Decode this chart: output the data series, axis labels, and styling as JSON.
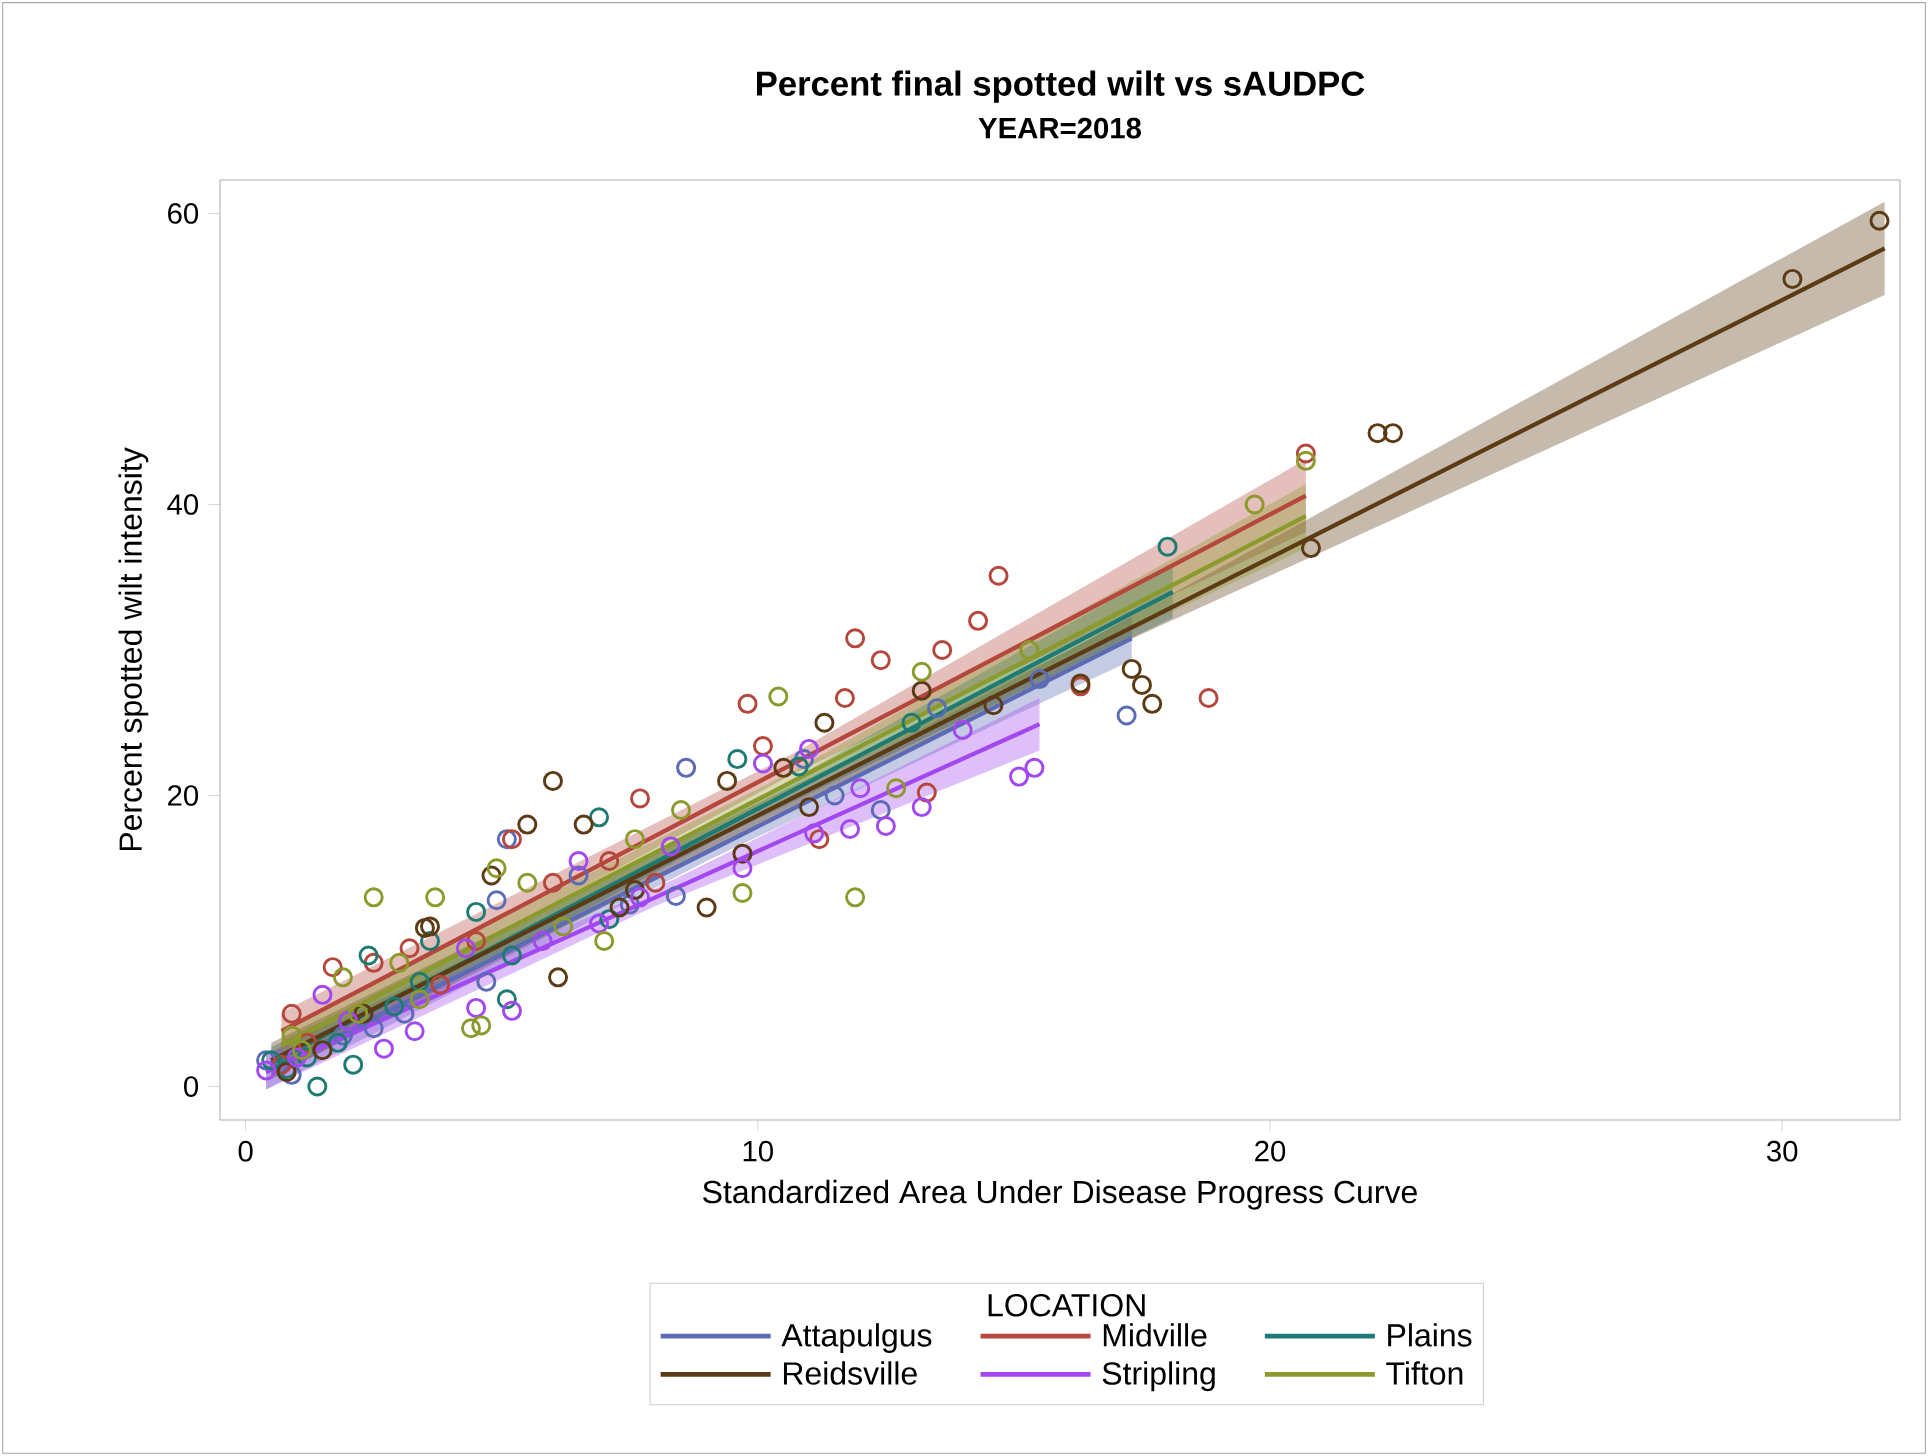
{
  "chart_data": {
    "type": "scatter",
    "title": "Percent final spotted wilt vs sAUDPC",
    "subtitle": "YEAR=2018",
    "xlabel": "Standardized Area Under Disease Progress Curve",
    "ylabel": "Percent spotted wilt intensity",
    "legend_title": "LOCATION",
    "xlim": [
      -0.5,
      32.3
    ],
    "ylim": [
      -2.3,
      62.3
    ],
    "xticks": [
      0,
      10,
      20,
      30
    ],
    "yticks": [
      0,
      20,
      40,
      60
    ],
    "grid": false,
    "legend": "bottom",
    "series": [
      {
        "type": "line",
        "marker": "none",
        "name": "Attapulgus",
        "color": "#5b6bb5",
        "x": [
          0.4,
          9,
          17.3
        ],
        "values": [
          1.0,
          16.1,
          30.8
        ],
        "lower": [
          -0.2,
          15.5,
          29.3
        ],
        "upper": [
          2.2,
          16.7,
          32.3
        ]
      },
      {
        "type": "line",
        "marker": "none",
        "name": "Midville",
        "color": "#b5473c",
        "x": [
          0.7,
          10.7,
          20.7
        ],
        "values": [
          3.8,
          22.2,
          40.6
        ],
        "lower": [
          2.5,
          21.5,
          38.1
        ],
        "upper": [
          5.1,
          22.9,
          43.1
        ]
      },
      {
        "type": "line",
        "marker": "none",
        "name": "Plains",
        "color": "#1e7b73",
        "x": [
          0.5,
          9.3,
          18.1
        ],
        "values": [
          1.6,
          17.8,
          34.0
        ],
        "lower": [
          0.5,
          17.2,
          32.2
        ],
        "upper": [
          2.7,
          18.4,
          35.8
        ]
      },
      {
        "type": "line",
        "marker": "none",
        "name": "Reidsville",
        "color": "#5c3a13",
        "x": [
          0.5,
          16.2,
          32.0
        ],
        "values": [
          1.8,
          29.6,
          57.6
        ],
        "lower": [
          0.6,
          29.0,
          54.4
        ],
        "upper": [
          3.0,
          30.2,
          60.8
        ]
      },
      {
        "type": "line",
        "marker": "none",
        "name": "Stripling",
        "color": "#a347f0",
        "x": [
          0.4,
          8,
          15.5
        ],
        "values": [
          1.0,
          13.0,
          24.9
        ],
        "lower": [
          -0.2,
          12.4,
          23.1
        ],
        "upper": [
          2.2,
          13.6,
          26.7
        ]
      },
      {
        "type": "line",
        "marker": "none",
        "name": "Tifton",
        "color": "#8c9a2c",
        "x": [
          0.7,
          10.7,
          20.7
        ],
        "values": [
          2.8,
          21.0,
          39.2
        ],
        "lower": [
          1.6,
          20.3,
          37.0
        ],
        "upper": [
          4.0,
          21.7,
          41.4
        ]
      },
      {
        "marker": "circle",
        "color": "#5b6bb5",
        "x": [
          17.2,
          15.5,
          12.4,
          8.6,
          5.1,
          4.9,
          0.4,
          0.9,
          2.5,
          8.4,
          10.9,
          6.5,
          4.7,
          3.1,
          11.5,
          7.5,
          1.9,
          13.5
        ],
        "values": [
          25.5,
          28.0,
          19.0,
          21.9,
          17.0,
          12.8,
          1.8,
          0.8,
          4.0,
          13.1,
          22.5,
          14.5,
          7.2,
          5.0,
          20.0,
          12.5,
          3.5,
          26.0
        ]
      },
      {
        "marker": "circle",
        "color": "#b5473c",
        "x": [
          20.7,
          18.8,
          16.3,
          14.7,
          14.3,
          13.6,
          12.4,
          11.9,
          9.8,
          11.7,
          13.3,
          10.1,
          7.7,
          7.1,
          5.2,
          3.2,
          1.7,
          0.9,
          1.2,
          2.5,
          4.5,
          8.0,
          11.2,
          6.0,
          3.8,
          0.7
        ],
        "values": [
          43.5,
          26.7,
          27.5,
          35.1,
          32.0,
          30.0,
          29.3,
          30.8,
          26.3,
          26.7,
          20.2,
          23.4,
          19.8,
          15.5,
          17.0,
          9.5,
          8.2,
          5.0,
          3.0,
          8.5,
          10.0,
          14.0,
          17.0,
          14.0,
          7.0,
          1.5
        ]
      },
      {
        "marker": "circle",
        "color": "#1e7b73",
        "x": [
          18.0,
          6.9,
          2.4,
          1.4,
          3.6,
          1.8,
          2.9,
          5.1,
          7.1,
          5.2,
          0.8,
          1.2,
          2.1,
          4.5,
          9.6,
          10.8,
          13.0,
          0.5,
          3.4
        ],
        "values": [
          37.1,
          18.5,
          9.0,
          0.0,
          10.0,
          3.0,
          5.5,
          6.0,
          11.5,
          9.0,
          1.2,
          2.0,
          1.5,
          12.0,
          22.5,
          22.0,
          25.0,
          1.8,
          7.2
        ]
      },
      {
        "marker": "circle",
        "color": "#5c3a13",
        "x": [
          31.9,
          30.2,
          22.1,
          22.4,
          20.8,
          17.3,
          17.5,
          17.7,
          16.3,
          14.6,
          13.2,
          11.3,
          10.5,
          9.4,
          9.0,
          7.6,
          6.6,
          6.0,
          6.1,
          5.5,
          3.5,
          3.6,
          4.8,
          7.3,
          9.7,
          11.0,
          0.8,
          1.5,
          2.3
        ],
        "values": [
          59.5,
          55.5,
          44.9,
          44.9,
          37.0,
          28.7,
          27.6,
          26.3,
          27.7,
          26.2,
          27.2,
          25.0,
          21.9,
          21.0,
          12.3,
          13.5,
          18.0,
          21.0,
          7.5,
          18.0,
          10.9,
          11.0,
          14.5,
          12.3,
          16.0,
          19.2,
          1.0,
          2.5,
          5.0
        ]
      },
      {
        "marker": "circle",
        "color": "#a347f0",
        "x": [
          15.4,
          15.1,
          13.2,
          12.5,
          11.8,
          9.7,
          11.1,
          11.0,
          10.1,
          4.5,
          5.2,
          2.7,
          1.5,
          3.3,
          6.5,
          7.7,
          8.3,
          0.4,
          1.0,
          6.9,
          4.3,
          2.0,
          5.8,
          12.0,
          14.0
        ],
        "values": [
          21.9,
          21.3,
          19.2,
          17.9,
          17.7,
          15.0,
          17.4,
          23.2,
          22.2,
          5.4,
          5.2,
          2.6,
          6.3,
          3.8,
          15.5,
          13.0,
          16.5,
          1.1,
          2.0,
          11.2,
          9.5,
          4.5,
          10.0,
          20.5,
          24.5
        ]
      },
      {
        "marker": "circle",
        "color": "#8c9a2c",
        "x": [
          20.7,
          19.7,
          11.9,
          10.4,
          9.7,
          2.5,
          3.7,
          4.4,
          4.6,
          2.2,
          1.1,
          1.9,
          7.0,
          4.9,
          6.2,
          8.5,
          7.6,
          3.4,
          5.5,
          13.2,
          15.3,
          0.9,
          3.0,
          12.7
        ],
        "values": [
          43.0,
          40.0,
          13.0,
          26.8,
          13.3,
          13.0,
          13.0,
          4.0,
          4.2,
          5.0,
          2.5,
          7.5,
          10.0,
          15.0,
          11.0,
          19.0,
          17.0,
          6.0,
          14.0,
          28.5,
          30.0,
          3.5,
          8.5,
          20.5
        ]
      }
    ]
  }
}
